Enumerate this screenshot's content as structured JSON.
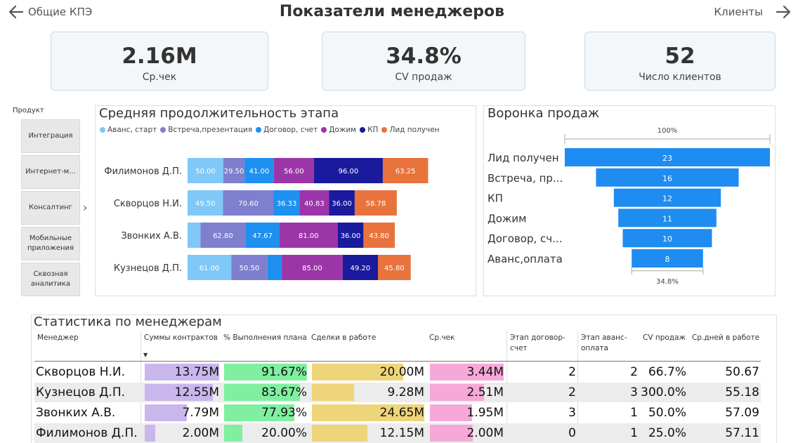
{
  "header": {
    "back_label": "Общие КПЭ",
    "title": "Показатели менеджеров",
    "forward_label": "Клиенты"
  },
  "kpis": [
    {
      "value": "2.16M",
      "label": "Ср.чек"
    },
    {
      "value": "34.8%",
      "label": "CV продаж"
    },
    {
      "value": "52",
      "label": "Число клиентов"
    }
  ],
  "slicer": {
    "title": "Продукт",
    "items": [
      "Интеграция",
      "Интернет-м...",
      "Консалтинг",
      "Мобильные приложения",
      "Сквозная аналитика"
    ]
  },
  "colors": {
    "avans": "#7fc8f8",
    "vstrecha": "#7f7fcf",
    "dogovor": "#1e90f0",
    "dozhim": "#9c35a8",
    "kp": "#1a1a9c",
    "lid": "#e8733c",
    "funnel": "#1e8cf0",
    "bar_sum": "#c9b6ec",
    "bar_pct": "#80efa0",
    "bar_deals": "#eed579",
    "bar_check": "#f6a8d8"
  },
  "charts": {
    "duration": {
      "title": "Средняя продолжительность этапа",
      "legend": [
        "Аванс, старт",
        "Встреча,презентация",
        "Договор, счет",
        "Дожим",
        "КП",
        "Лид получен"
      ]
    },
    "funnel": {
      "title": "Воронка продаж",
      "top_pct": "100%",
      "bottom_pct": "34.8%"
    }
  },
  "chart_data": [
    {
      "type": "bar",
      "stacked": true,
      "orientation": "horizontal",
      "title": "Средняя продолжительность этапа",
      "categories": [
        "Филимонов Д.П.",
        "Скворцов Н.И.",
        "Звонких А.В.",
        "Кузнецов Д.П."
      ],
      "series": [
        {
          "name": "Аванс, старт",
          "values": [
            50.0,
            49.5,
            18.0,
            61.0
          ],
          "labels": [
            "50.00",
            "49.50",
            "",
            "61.00"
          ]
        },
        {
          "name": "Встреча,презентация",
          "values": [
            29.5,
            70.6,
            62.8,
            50.5
          ],
          "labels": [
            "29.50",
            "70.60",
            "62.80",
            "50.50"
          ]
        },
        {
          "name": "Договор, счет",
          "values": [
            41.0,
            36.33,
            47.67,
            20.0
          ],
          "labels": [
            "41.00",
            "36.33",
            "47.67",
            ""
          ]
        },
        {
          "name": "Дожим",
          "values": [
            56.0,
            40.83,
            81.0,
            85.0
          ],
          "labels": [
            "56.00",
            "40.83",
            "81.00",
            "85.00"
          ]
        },
        {
          "name": "КП",
          "values": [
            96.0,
            36.0,
            36.0,
            49.2
          ],
          "labels": [
            "96.00",
            "36.00",
            "36.00",
            "49.20"
          ]
        },
        {
          "name": "Лид получен",
          "values": [
            63.25,
            58.78,
            43.8,
            45.8
          ],
          "labels": [
            "63.25",
            "58.78",
            "43.80",
            "45.80"
          ]
        }
      ]
    },
    {
      "type": "bar",
      "subtype": "funnel",
      "title": "Воронка продаж",
      "categories": [
        "Лид получен",
        "Встреча, пр...",
        "КП",
        "Дожим",
        "Договор, сч...",
        "Аванс,оплата"
      ],
      "values": [
        23,
        16,
        12,
        11,
        10,
        8
      ]
    }
  ],
  "table": {
    "title": "Статистика по менеджерам",
    "headers": [
      "Менеджер",
      "Суммы контрактов",
      "% Выполнения плана",
      "Сделки в работе",
      "Ср.чек",
      "Этап договор-счет",
      "Этап аванс-оплата",
      "CV продаж",
      "Ср.дней в работе"
    ],
    "rows": [
      {
        "manager": "Скворцов Н.И.",
        "sum": "13.75M",
        "sum_v": 13.75,
        "plan": "91.67%",
        "plan_v": 91.67,
        "deals": "20.00M",
        "deals_v": 20.0,
        "check": "3.44M",
        "check_v": 3.44,
        "dogovor": "2",
        "avans": "2",
        "cv": "66.7%",
        "days": "50.67"
      },
      {
        "manager": "Кузнецов Д.П.",
        "sum": "12.55M",
        "sum_v": 12.55,
        "plan": "83.67%",
        "plan_v": 83.67,
        "deals": "9.28M",
        "deals_v": 9.28,
        "check": "2.51M",
        "check_v": 2.51,
        "dogovor": "2",
        "avans": "3",
        "cv": "300.0%",
        "days": "55.18"
      },
      {
        "manager": "Звонких А.В.",
        "sum": "7.79M",
        "sum_v": 7.79,
        "plan": "77.93%",
        "plan_v": 77.93,
        "deals": "24.65M",
        "deals_v": 24.65,
        "check": "1.95M",
        "check_v": 1.95,
        "dogovor": "3",
        "avans": "1",
        "cv": "50.0%",
        "days": "57.09"
      },
      {
        "manager": "Филимонов Д.П.",
        "sum": "2.00M",
        "sum_v": 2.0,
        "plan": "20.00%",
        "plan_v": 20.0,
        "deals": "12.15M",
        "deals_v": 12.15,
        "check": "2.00M",
        "check_v": 2.0,
        "dogovor": "0",
        "avans": "1",
        "cv": "25.0%",
        "days": "57.11"
      }
    ]
  }
}
